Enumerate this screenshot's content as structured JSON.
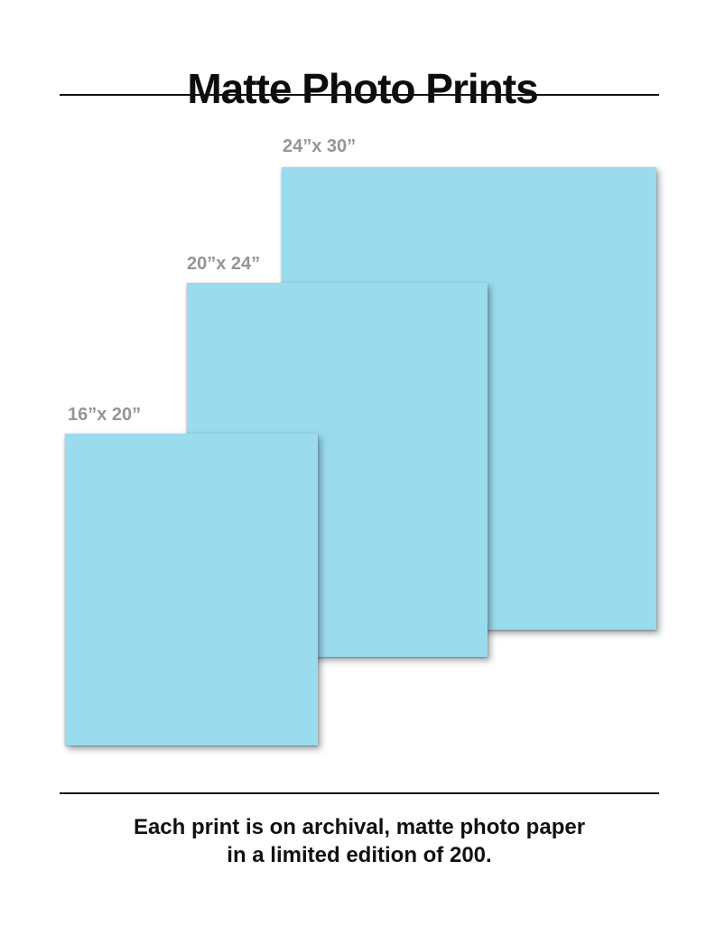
{
  "page": {
    "title": "Matte Photo Prints"
  },
  "prints": [
    {
      "id": "24x30",
      "label": "24”x 30”"
    },
    {
      "id": "20x24",
      "label": "20”x 24”"
    },
    {
      "id": "16x20",
      "label": "16”x 20”"
    }
  ],
  "footer": {
    "line1": "Each print is on archival, matte photo paper",
    "line2": "in a limited edition of 200."
  },
  "colors": {
    "print_fill": "#9adbed",
    "label_gray": "#939598",
    "text_black": "#111111"
  }
}
